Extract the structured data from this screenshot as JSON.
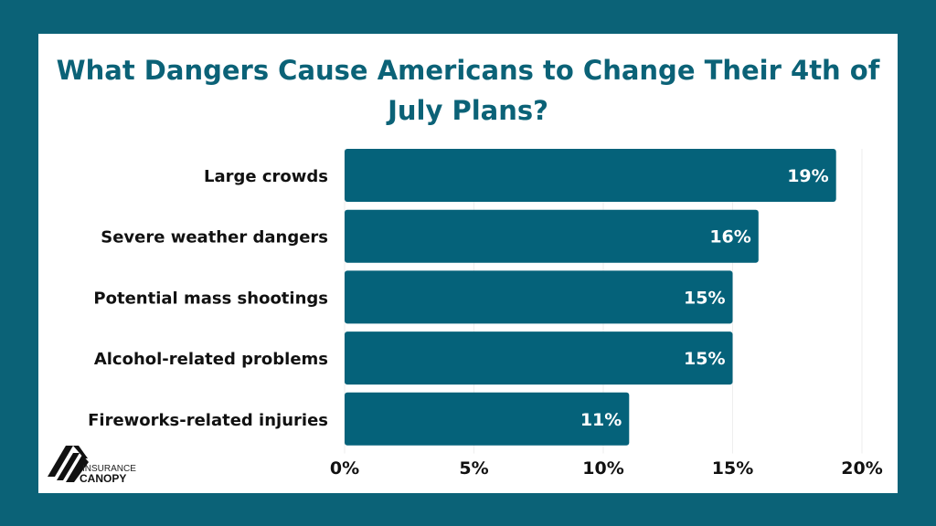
{
  "chart_data": {
    "type": "bar",
    "orientation": "horizontal",
    "title": "What Dangers Cause Americans to Change Their 4th of July Plans?",
    "categories": [
      "Large crowds",
      "Severe weather dangers",
      "Potential mass shootings",
      "Alcohol-related problems",
      "Fireworks-related injuries"
    ],
    "values": [
      19,
      16,
      15,
      15,
      11
    ],
    "data_labels": [
      "19%",
      "16%",
      "15%",
      "15%",
      "11%"
    ],
    "xlim": [
      0,
      20
    ],
    "x_ticks": [
      0,
      5,
      10,
      15,
      20
    ],
    "x_tick_labels": [
      "0%",
      "5%",
      "10%",
      "15%",
      "20%"
    ],
    "xlabel": "",
    "ylabel": "",
    "grid": true,
    "bar_color": "#05627a",
    "background_color": "#0b6277"
  },
  "logo": {
    "line1": "INSURANCE",
    "line2": "CANOPY"
  }
}
